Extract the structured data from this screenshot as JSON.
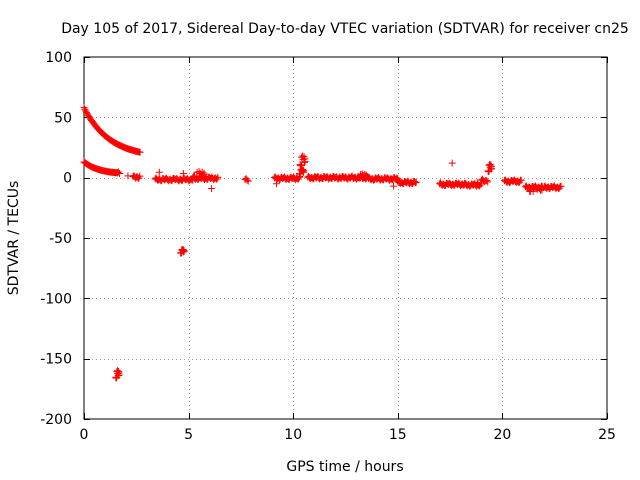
{
  "chart_data": {
    "type": "scatter",
    "title": "Day 105 of 2017, Sidereal Day-to-day VTEC variation (SDTVAR) for receiver cn25",
    "xlabel": "GPS time / hours",
    "ylabel": "SDTVAR / TECUs",
    "xlim": [
      0,
      25
    ],
    "ylim": [
      -200,
      100
    ],
    "xticks": [
      0,
      5,
      10,
      15,
      20,
      25
    ],
    "yticks": [
      -200,
      -150,
      -100,
      -50,
      0,
      50,
      100
    ],
    "grid": true,
    "marker": "+",
    "color": "#ff0000",
    "curves": [
      {
        "name": "upper-decay",
        "x0": 0.0,
        "x1": 2.7,
        "y0": 58,
        "y1": 21,
        "shape": "exp",
        "step": 0.04
      },
      {
        "name": "lower-decay",
        "x0": 0.0,
        "x1": 1.6,
        "y0": 13,
        "y1": 4,
        "shape": "exp",
        "step": 0.04
      }
    ],
    "segments": [
      {
        "x0": 1.6,
        "x1": 1.7,
        "y": 3.5,
        "step": 0.05
      },
      {
        "x0": 2.35,
        "x1": 2.7,
        "y": 0.5,
        "step": 0.04
      },
      {
        "x0": 3.4,
        "x1": 5.2,
        "y": -1.5,
        "step": 0.045
      },
      {
        "x0": 5.2,
        "x1": 6.4,
        "y": -0.5,
        "step": 0.04
      },
      {
        "x0": 7.7,
        "x1": 7.85,
        "y": -2,
        "step": 0.05
      },
      {
        "x0": 9.1,
        "x1": 10.3,
        "y": -0.5,
        "step": 0.04
      },
      {
        "x0": 10.7,
        "x1": 13.6,
        "y": 0,
        "step": 0.04
      },
      {
        "x0": 13.6,
        "x1": 15.0,
        "y": -1,
        "step": 0.04
      },
      {
        "x0": 15.0,
        "x1": 15.9,
        "y": -4,
        "step": 0.04
      },
      {
        "x0": 17.0,
        "x1": 18.2,
        "y": -5.5,
        "step": 0.04
      },
      {
        "x0": 18.2,
        "x1": 19.0,
        "y": -6,
        "step": 0.04
      },
      {
        "x0": 19.0,
        "x1": 19.3,
        "y": -2.5,
        "step": 0.05
      },
      {
        "x0": 20.1,
        "x1": 20.9,
        "y": -3,
        "step": 0.04
      },
      {
        "x0": 21.1,
        "x1": 21.9,
        "y": -8,
        "step": 0.04
      },
      {
        "x0": 22.0,
        "x1": 22.8,
        "y": -8,
        "step": 0.04
      }
    ],
    "clusters": [
      {
        "x": 1.6,
        "y": -163,
        "dx": 0.08,
        "dy": 3
      },
      {
        "x": 4.7,
        "y": -61,
        "dx": 0.08,
        "dy": 1.5
      },
      {
        "x": 10.45,
        "y": 14,
        "dx": 0.12,
        "dy": 4
      },
      {
        "x": 10.4,
        "y": 5,
        "dx": 0.1,
        "dy": 2
      },
      {
        "x": 19.4,
        "y": 8,
        "dx": 0.08,
        "dy": 3
      },
      {
        "x": 5.5,
        "y": 3,
        "dx": 0.25,
        "dy": 2
      },
      {
        "x": 13.3,
        "y": 1.5,
        "dx": 0.2,
        "dy": 1.5
      },
      {
        "x": 21.6,
        "y": -10,
        "dx": 0.3,
        "dy": 1.5
      }
    ],
    "points": [
      {
        "x": 2.1,
        "y": 1.5
      },
      {
        "x": 3.6,
        "y": 4.5
      },
      {
        "x": 4.75,
        "y": 3.5
      },
      {
        "x": 6.1,
        "y": -9
      },
      {
        "x": 9.2,
        "y": -5
      },
      {
        "x": 10.3,
        "y": 1
      },
      {
        "x": 14.8,
        "y": -7
      },
      {
        "x": 17.6,
        "y": 12
      },
      {
        "x": 18.8,
        "y": -4
      }
    ]
  }
}
